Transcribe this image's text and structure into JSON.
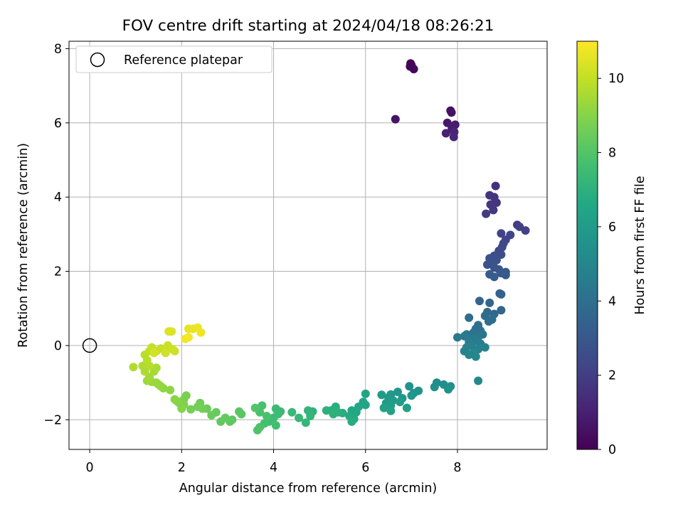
{
  "chart_data": {
    "type": "scatter",
    "title": "FOV centre drift starting at 2024/04/18 08:26:21",
    "xlabel": "Angular distance from reference (arcmin)",
    "ylabel": "Rotation from reference (arcmin)",
    "xlim": [
      -0.45,
      9.95
    ],
    "ylim": [
      -2.8,
      8.2
    ],
    "x_ticks": [
      0,
      2,
      4,
      6,
      8
    ],
    "y_ticks": [
      -2,
      0,
      2,
      4,
      6,
      8
    ],
    "x_tick_labels": [
      "0",
      "2",
      "4",
      "6",
      "8"
    ],
    "y_tick_labels": [
      "−2",
      "0",
      "2",
      "4",
      "6",
      "8"
    ],
    "grid": true,
    "legend": {
      "position": "top-left",
      "label": "Reference platepar"
    },
    "reference_point": {
      "x": 0,
      "y": 0
    },
    "colorbar": {
      "label": "Hours from first FF file",
      "range": [
        0,
        11
      ],
      "ticks": [
        0,
        2,
        4,
        6,
        8,
        10
      ],
      "tick_labels": [
        "0",
        "2",
        "4",
        "6",
        "8",
        "10"
      ],
      "colormap": "viridis"
    },
    "series": [
      {
        "points": [
          [
            6.98,
            7.6,
            0.0
          ],
          [
            7.0,
            7.55,
            0.1
          ],
          [
            6.97,
            7.52,
            0.15
          ],
          [
            7.05,
            7.45,
            0.2
          ],
          [
            7.85,
            6.33,
            0.45
          ],
          [
            7.87,
            6.28,
            0.5
          ],
          [
            6.65,
            6.1,
            0.6
          ],
          [
            7.78,
            6.0,
            0.7
          ],
          [
            7.95,
            5.95,
            0.8
          ],
          [
            7.9,
            5.9,
            0.85
          ],
          [
            7.88,
            5.85,
            0.9
          ],
          [
            7.75,
            5.72,
            1.0
          ],
          [
            7.93,
            5.75,
            1.1
          ],
          [
            7.92,
            5.62,
            1.2
          ],
          [
            8.83,
            4.3,
            1.5
          ],
          [
            8.7,
            4.05,
            1.6
          ],
          [
            8.8,
            4.0,
            1.65
          ],
          [
            8.85,
            3.85,
            1.7
          ],
          [
            8.72,
            3.8,
            1.75
          ],
          [
            8.78,
            3.65,
            1.8
          ],
          [
            8.62,
            3.55,
            1.85
          ],
          [
            9.3,
            3.25,
            2.0
          ],
          [
            9.35,
            3.2,
            2.05
          ],
          [
            9.48,
            3.1,
            2.1
          ],
          [
            8.95,
            3.02,
            2.2
          ],
          [
            9.15,
            2.98,
            2.25
          ],
          [
            9.05,
            2.85,
            2.3
          ],
          [
            9.0,
            2.75,
            2.35
          ],
          [
            8.97,
            2.65,
            2.4
          ],
          [
            8.9,
            2.55,
            2.5
          ],
          [
            8.95,
            2.45,
            2.55
          ],
          [
            8.8,
            2.42,
            2.6
          ],
          [
            8.7,
            2.35,
            2.7
          ],
          [
            8.85,
            2.3,
            2.75
          ],
          [
            8.75,
            2.2,
            2.8
          ],
          [
            8.65,
            2.18,
            2.85
          ],
          [
            8.8,
            2.1,
            2.9
          ],
          [
            8.9,
            2.05,
            2.95
          ],
          [
            9.05,
            1.98,
            3.0
          ],
          [
            8.95,
            1.95,
            3.05
          ],
          [
            9.05,
            1.9,
            3.1
          ],
          [
            8.7,
            1.92,
            3.15
          ],
          [
            8.8,
            1.85,
            3.2
          ],
          [
            8.92,
            1.4,
            3.4
          ],
          [
            8.95,
            1.38,
            3.45
          ],
          [
            8.48,
            1.2,
            3.5
          ],
          [
            8.7,
            1.15,
            3.55
          ],
          [
            8.95,
            0.95,
            3.6
          ],
          [
            8.65,
            0.9,
            3.7
          ],
          [
            8.8,
            0.85,
            3.75
          ],
          [
            8.6,
            0.8,
            3.8
          ],
          [
            8.25,
            0.75,
            3.85
          ],
          [
            8.75,
            0.7,
            3.9
          ],
          [
            8.68,
            0.65,
            3.95
          ],
          [
            8.45,
            0.55,
            4.0
          ],
          [
            8.4,
            0.45,
            4.1
          ],
          [
            8.5,
            0.4,
            4.15
          ],
          [
            8.35,
            0.35,
            4.2
          ],
          [
            8.55,
            0.3,
            4.25
          ],
          [
            8.2,
            0.3,
            4.3
          ],
          [
            8.45,
            0.22,
            4.35
          ],
          [
            8.0,
            0.22,
            4.4
          ],
          [
            8.15,
            0.25,
            4.45
          ],
          [
            8.35,
            0.18,
            4.5
          ],
          [
            8.42,
            0.12,
            4.55
          ],
          [
            8.25,
            0.1,
            4.6
          ],
          [
            8.5,
            0.05,
            4.65
          ],
          [
            8.3,
            0.0,
            4.7
          ],
          [
            8.2,
            -0.05,
            4.75
          ],
          [
            8.6,
            -0.05,
            4.8
          ],
          [
            8.45,
            -0.1,
            4.85
          ],
          [
            8.15,
            -0.15,
            4.9
          ],
          [
            8.35,
            -0.2,
            4.95
          ],
          [
            8.25,
            -0.25,
            5.0
          ],
          [
            8.4,
            -0.3,
            5.05
          ],
          [
            8.45,
            -0.95,
            5.1
          ],
          [
            7.55,
            -1.0,
            5.3
          ],
          [
            7.7,
            -1.05,
            5.35
          ],
          [
            7.85,
            -1.1,
            5.4
          ],
          [
            7.5,
            -1.12,
            5.45
          ],
          [
            7.8,
            -1.18,
            5.5
          ],
          [
            6.95,
            -1.1,
            5.55
          ],
          [
            7.15,
            -1.22,
            5.6
          ],
          [
            7.05,
            -1.28,
            5.65
          ],
          [
            6.7,
            -1.25,
            5.7
          ],
          [
            7.0,
            -1.35,
            5.75
          ],
          [
            6.8,
            -1.42,
            5.8
          ],
          [
            6.55,
            -1.32,
            5.85
          ],
          [
            6.5,
            -1.4,
            5.9
          ],
          [
            6.6,
            -1.48,
            5.95
          ],
          [
            6.35,
            -1.33,
            6.0
          ],
          [
            6.45,
            -1.55,
            6.05
          ],
          [
            6.75,
            -1.52,
            6.1
          ],
          [
            6.55,
            -1.62,
            6.15
          ],
          [
            6.9,
            -1.68,
            6.2
          ],
          [
            6.4,
            -1.68,
            6.25
          ],
          [
            6.55,
            -1.76,
            6.3
          ],
          [
            6.0,
            -1.3,
            6.35
          ],
          [
            5.95,
            -1.52,
            6.4
          ],
          [
            6.0,
            -1.6,
            6.45
          ],
          [
            5.85,
            -1.65,
            6.5
          ],
          [
            5.7,
            -1.75,
            6.55
          ],
          [
            5.8,
            -1.8,
            6.6
          ],
          [
            5.65,
            -1.9,
            6.65
          ],
          [
            5.75,
            -1.98,
            6.7
          ],
          [
            5.7,
            -2.05,
            6.75
          ],
          [
            5.5,
            -1.82,
            6.8
          ],
          [
            5.35,
            -1.65,
            6.85
          ],
          [
            5.25,
            -1.75,
            6.9
          ],
          [
            5.4,
            -1.8,
            6.95
          ],
          [
            5.15,
            -1.75,
            7.0
          ],
          [
            5.3,
            -1.85,
            7.05
          ],
          [
            4.85,
            -1.78,
            7.1
          ],
          [
            4.75,
            -1.75,
            7.15
          ],
          [
            4.8,
            -1.9,
            7.2
          ],
          [
            4.7,
            -2.08,
            7.25
          ],
          [
            4.55,
            -1.95,
            7.3
          ],
          [
            4.4,
            -1.8,
            7.35
          ],
          [
            4.15,
            -1.78,
            7.4
          ],
          [
            4.05,
            -1.7,
            7.45
          ],
          [
            4.1,
            -1.85,
            7.5
          ],
          [
            4.0,
            -1.95,
            7.55
          ],
          [
            3.9,
            -2.05,
            7.6
          ],
          [
            4.05,
            -2.15,
            7.65
          ],
          [
            3.8,
            -2.1,
            7.7
          ],
          [
            3.75,
            -1.62,
            7.75
          ],
          [
            3.7,
            -1.8,
            7.8
          ],
          [
            3.85,
            -1.9,
            7.85
          ],
          [
            3.7,
            -2.2,
            7.9
          ],
          [
            3.65,
            -2.28,
            7.95
          ],
          [
            3.6,
            -1.68,
            8.0
          ],
          [
            3.3,
            -1.85,
            8.1
          ],
          [
            3.25,
            -1.78,
            8.15
          ],
          [
            3.1,
            -2.0,
            8.2
          ],
          [
            3.05,
            -2.05,
            8.25
          ],
          [
            2.85,
            -2.05,
            8.3
          ],
          [
            2.95,
            -1.95,
            8.35
          ],
          [
            2.75,
            -1.8,
            8.4
          ],
          [
            2.65,
            -1.88,
            8.45
          ],
          [
            2.55,
            -1.7,
            8.5
          ],
          [
            2.4,
            -1.55,
            8.55
          ],
          [
            2.45,
            -1.7,
            8.6
          ],
          [
            2.35,
            -1.65,
            8.65
          ],
          [
            2.2,
            -1.72,
            8.7
          ],
          [
            2.1,
            -1.35,
            8.75
          ],
          [
            2.05,
            -1.45,
            8.8
          ],
          [
            1.95,
            -1.55,
            8.85
          ],
          [
            2.05,
            -1.6,
            8.9
          ],
          [
            2.0,
            -1.7,
            8.95
          ],
          [
            1.9,
            -1.5,
            9.0
          ],
          [
            1.85,
            -1.45,
            9.05
          ],
          [
            1.75,
            -1.2,
            9.1
          ],
          [
            1.6,
            -1.15,
            9.15
          ],
          [
            1.55,
            -1.1,
            9.2
          ],
          [
            1.5,
            -1.05,
            9.25
          ],
          [
            1.45,
            -1.0,
            9.3
          ],
          [
            1.35,
            -0.98,
            9.35
          ],
          [
            1.25,
            -0.95,
            9.4
          ],
          [
            1.3,
            -0.85,
            9.45
          ],
          [
            1.4,
            -0.7,
            9.5
          ],
          [
            1.45,
            -0.6,
            9.55
          ],
          [
            1.2,
            -0.7,
            9.6
          ],
          [
            1.15,
            -0.55,
            9.65
          ],
          [
            0.95,
            -0.58,
            9.7
          ],
          [
            1.3,
            -0.55,
            9.75
          ],
          [
            1.25,
            -0.4,
            9.8
          ],
          [
            1.2,
            -0.25,
            9.85
          ],
          [
            1.3,
            -0.15,
            9.9
          ],
          [
            1.45,
            -0.15,
            9.95
          ],
          [
            1.35,
            -0.05,
            10.0
          ],
          [
            1.55,
            -0.08,
            10.05
          ],
          [
            1.7,
            0.0,
            10.1
          ],
          [
            1.8,
            -0.1,
            10.15
          ],
          [
            1.85,
            -0.15,
            10.2
          ],
          [
            1.65,
            -0.2,
            10.25
          ],
          [
            1.4,
            -0.2,
            10.3
          ],
          [
            1.72,
            0.38,
            10.4
          ],
          [
            1.78,
            0.38,
            10.45
          ],
          [
            2.15,
            0.45,
            10.6
          ],
          [
            2.25,
            0.45,
            10.65
          ],
          [
            2.35,
            0.48,
            10.7
          ],
          [
            2.42,
            0.35,
            10.75
          ],
          [
            2.08,
            0.18,
            10.85
          ],
          [
            2.15,
            0.22,
            10.9
          ]
        ]
      }
    ]
  }
}
